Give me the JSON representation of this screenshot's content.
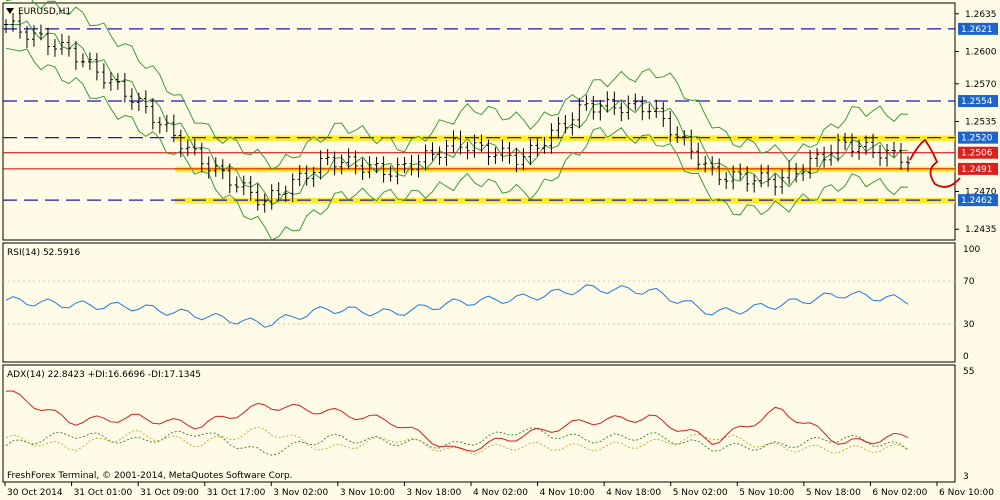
{
  "window": {
    "symbol_label": "EURUSD,H1",
    "copyright": "FreshForex Terminal, © 2001-2014, MetaQuotes Software Corp."
  },
  "colors": {
    "bg": "#fffbe6",
    "axis": "#000000",
    "grid": "#c8c8b0",
    "dash": "#1a1aa0",
    "redline": "#cc0000",
    "band": "#ffe600",
    "bollinger": "#3c9b3c",
    "rsi": "#1e78e6",
    "adx": "#d21e1e",
    "plus_di": "#3c8c3c",
    "minus_di": "#c8aa3c",
    "label_bg": "#1e64c8",
    "label_red": "#dc1e1e"
  },
  "main": {
    "price_ticks": [
      "1.2635",
      "1.2600",
      "1.2570",
      "1.2535",
      "1.2470",
      "1.2435"
    ],
    "dashed_levels": [
      {
        "price": "1.2621"
      },
      {
        "price": "1.2554"
      },
      {
        "price": "1.2520"
      },
      {
        "price": "1.2462"
      }
    ],
    "red_levels": [
      {
        "price": "1.2506"
      },
      {
        "price": "1.2491"
      }
    ]
  },
  "rsi": {
    "label": "RSI(14) 52.5916",
    "ticks": [
      "100",
      "70",
      "30",
      "0"
    ]
  },
  "adx": {
    "label": "ADX(14) 22.8423 +DI:16.6696 -DI:17.1345",
    "ticks": [
      "55",
      "3"
    ]
  },
  "time_axis": [
    "30 Oct 2014",
    "31 Oct 01:00",
    "31 Oct 09:00",
    "31 Oct 17:00",
    "3 Nov 02:00",
    "3 Nov 10:00",
    "3 Nov 18:00",
    "4 Nov 02:00",
    "4 Nov 10:00",
    "4 Nov 18:00",
    "5 Nov 02:00",
    "5 Nov 10:00",
    "5 Nov 18:00",
    "6 Nov 02:00",
    "6 Nov 10:00"
  ],
  "chart_data": {
    "type": "line",
    "title": "EURUSD,H1",
    "ylim": [
      1.2425,
      1.2645
    ],
    "x": [
      "30 Oct 2014",
      "31 Oct 01:00",
      "31 Oct 09:00",
      "31 Oct 17:00",
      "3 Nov 02:00",
      "3 Nov 10:00",
      "3 Nov 18:00",
      "4 Nov 02:00",
      "4 Nov 10:00",
      "4 Nov 18:00",
      "5 Nov 02:00",
      "5 Nov 10:00",
      "5 Nov 18:00",
      "6 Nov 02:00",
      "6 Nov 10:00"
    ],
    "series": [
      {
        "name": "EURUSD,H1",
        "values": [
          1.2625,
          1.26,
          1.2555,
          1.25,
          1.246,
          1.25,
          1.2488,
          1.2515,
          1.25,
          1.255,
          1.2548,
          1.2485,
          1.248,
          1.2515,
          1.25
        ]
      }
    ],
    "horizontal_levels": [
      1.2621,
      1.2554,
      1.252,
      1.2506,
      1.2491,
      1.2462
    ],
    "rsi": {
      "name": "RSI(14)",
      "ylim": [
        0,
        100
      ],
      "values": [
        52,
        48,
        46,
        38,
        30,
        44,
        40,
        50,
        54,
        63,
        61,
        40,
        48,
        58,
        52
      ]
    },
    "adx": {
      "name": "ADX(14)",
      "values": [
        45,
        30,
        32,
        28,
        38,
        35,
        30,
        15,
        23,
        30,
        32,
        20,
        36,
        19,
        23
      ]
    },
    "plus_di": {
      "name": "+DI",
      "values": [
        18,
        24,
        20,
        25,
        14,
        22,
        20,
        18,
        26,
        21,
        23,
        17,
        18,
        22,
        17
      ]
    },
    "minus_di": {
      "name": "-DI",
      "values": [
        22,
        17,
        24,
        19,
        26,
        16,
        22,
        15,
        18,
        17,
        19,
        23,
        17,
        16,
        17
      ]
    }
  }
}
